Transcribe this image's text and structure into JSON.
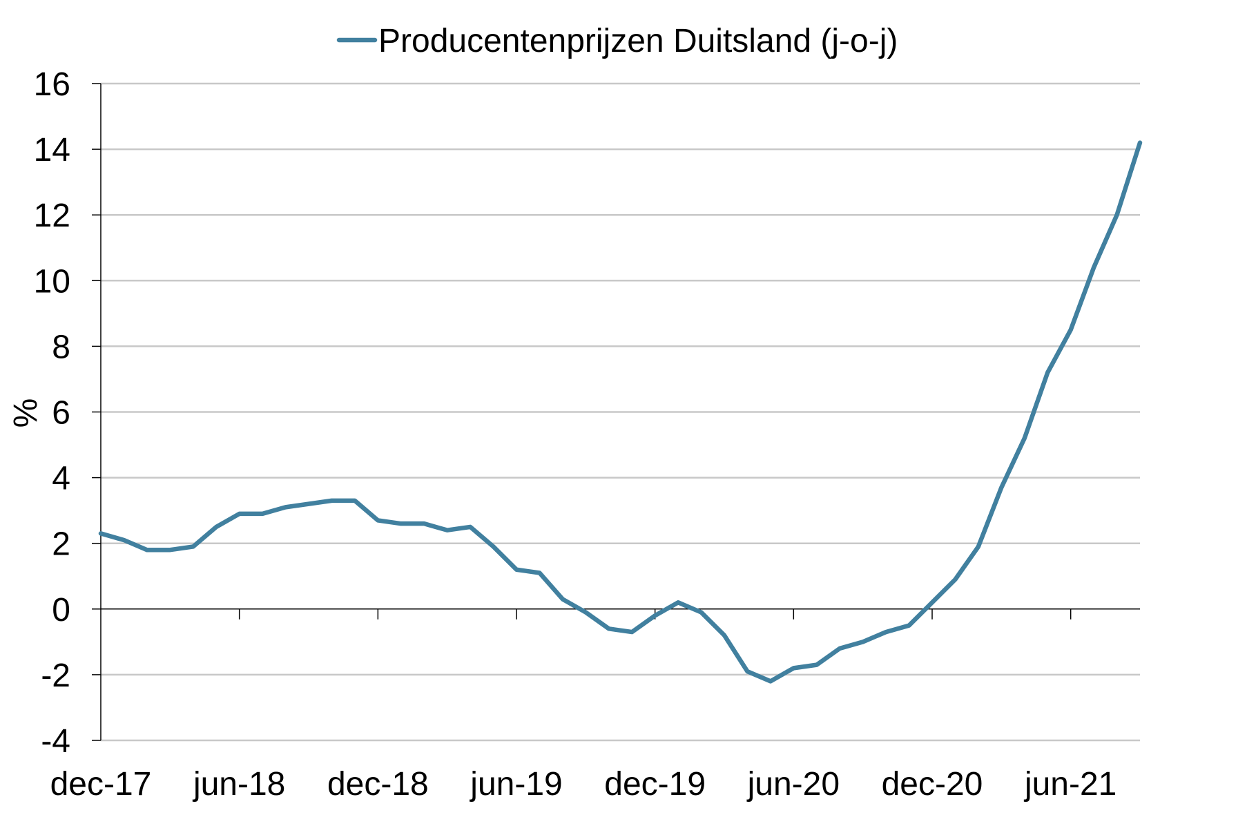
{
  "chart_data": {
    "type": "line",
    "ylabel": "%",
    "ylim": [
      -4,
      16
    ],
    "yticks": [
      "-4",
      "-2",
      "0",
      "2",
      "4",
      "6",
      "8",
      "10",
      "12",
      "14",
      "16"
    ],
    "xtick_labels": [
      "dec-17",
      "jun-18",
      "dec-18",
      "jun-19",
      "dec-19",
      "jun-20",
      "dec-20",
      "jun-21"
    ],
    "grid": true,
    "legend_position": "top",
    "series": [
      {
        "name": "Producentenprijzen Duitsland (j-o-j)",
        "color": "#41809f",
        "x": [
          "dec-17",
          "jan-18",
          "feb-18",
          "mrt-18",
          "apr-18",
          "mei-18",
          "jun-18",
          "jul-18",
          "aug-18",
          "sep-18",
          "okt-18",
          "nov-18",
          "dec-18",
          "jan-19",
          "feb-19",
          "mrt-19",
          "apr-19",
          "mei-19",
          "jun-19",
          "jul-19",
          "aug-19",
          "sep-19",
          "okt-19",
          "nov-19",
          "dec-19",
          "jan-20",
          "feb-20",
          "mrt-20",
          "apr-20",
          "mei-20",
          "jun-20",
          "jul-20",
          "aug-20",
          "sep-20",
          "okt-20",
          "nov-20",
          "dec-20",
          "jan-21",
          "feb-21",
          "mrt-21",
          "apr-21",
          "mei-21",
          "jun-21",
          "jul-21",
          "aug-21",
          "sep-21"
        ],
        "values": [
          2.3,
          2.1,
          1.8,
          1.8,
          1.9,
          2.5,
          2.9,
          2.9,
          3.1,
          3.2,
          3.3,
          3.3,
          2.7,
          2.6,
          2.6,
          2.4,
          2.5,
          1.9,
          1.2,
          1.1,
          0.3,
          -0.1,
          -0.6,
          -0.7,
          -0.2,
          0.2,
          -0.1,
          -0.8,
          -1.9,
          -2.2,
          -1.8,
          -1.7,
          -1.2,
          -1.0,
          -0.7,
          -0.5,
          0.2,
          0.9,
          1.9,
          3.7,
          5.2,
          7.2,
          8.5,
          10.4,
          12.0,
          14.2
        ]
      }
    ]
  }
}
